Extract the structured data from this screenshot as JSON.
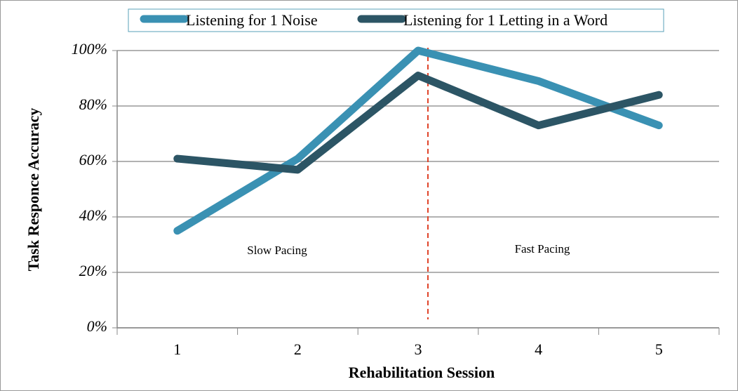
{
  "chart_data": {
    "type": "line",
    "x_label": "Rehabilitation Session",
    "y_label": "Task Responce Accuracy",
    "categories": [
      "1",
      "2",
      "3",
      "4",
      "5"
    ],
    "series": [
      {
        "name": "Listening for 1 Noise",
        "color": "#3a91b3",
        "values": [
          35,
          61,
          100,
          89,
          73
        ]
      },
      {
        "name": "Listening for 1 Letting in a Word",
        "color": "#2c5565",
        "values": [
          61,
          57,
          91,
          73,
          84
        ]
      }
    ],
    "ylim": [
      0,
      100
    ],
    "yticks": [
      {
        "value": 0,
        "label": "0%"
      },
      {
        "value": 20,
        "label": "20%"
      },
      {
        "value": 40,
        "label": "40%"
      },
      {
        "value": 60,
        "label": "60%"
      },
      {
        "value": 80,
        "label": "80%"
      },
      {
        "value": 100,
        "label": "100%"
      }
    ],
    "grid": true,
    "legend": "top",
    "annotations": [
      "Slow Pacing",
      "Fast Pacing"
    ]
  }
}
